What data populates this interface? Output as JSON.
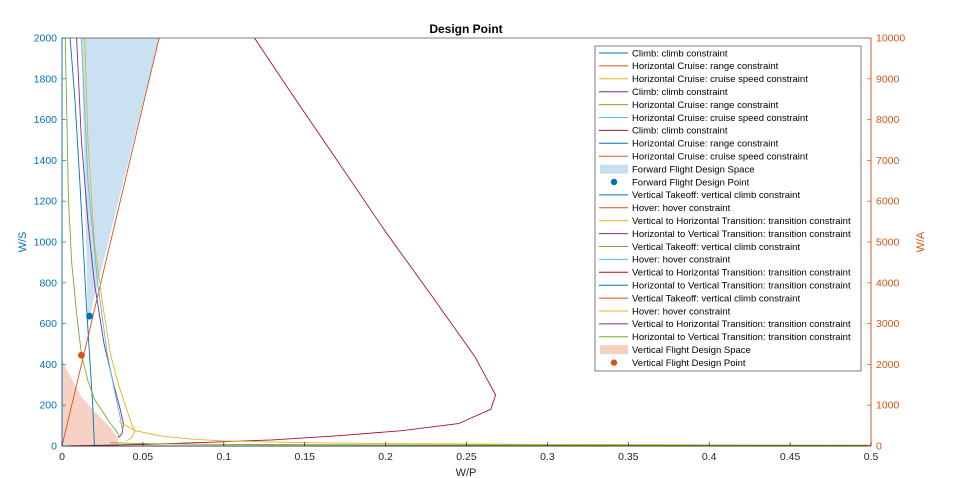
{
  "chart_data": {
    "type": "line",
    "title": "Design Point",
    "xlabel": "W/P",
    "ylabel_left": "W/S",
    "ylabel_right": "W/A",
    "xlim": [
      0,
      0.5
    ],
    "ylim_left": [
      0,
      2000
    ],
    "ylim_right": [
      0,
      10000
    ],
    "x_ticks": [
      "0",
      "0.05",
      "0.1",
      "0.15",
      "0.2",
      "0.25",
      "0.3",
      "0.35",
      "0.4",
      "0.45",
      "0.5"
    ],
    "y_left_ticks": [
      "0",
      "200",
      "400",
      "600",
      "800",
      "1000",
      "1200",
      "1400",
      "1600",
      "1800",
      "2000"
    ],
    "y_right_ticks": [
      "0",
      "1000",
      "2000",
      "3000",
      "4000",
      "5000",
      "6000",
      "7000",
      "8000",
      "9000",
      "10000"
    ],
    "grid": false,
    "legend_position": "top-right",
    "colors": {
      "left_axis": "#0072BD",
      "right_axis": "#D95319",
      "forward_space": "#C6DFF0",
      "vertical_space": "#F4D0C0"
    },
    "legend": [
      {
        "label": "Climb: climb constraint",
        "color": "#0072BD",
        "kind": "line"
      },
      {
        "label": "Horizontal Cruise: range constraint",
        "color": "#D95319",
        "kind": "line"
      },
      {
        "label": "Horizontal Cruise: cruise speed constraint",
        "color": "#EDB120",
        "kind": "line"
      },
      {
        "label": "Climb: climb constraint",
        "color": "#7E2F8E",
        "kind": "line"
      },
      {
        "label": "Horizontal Cruise: range constraint",
        "color": "#77AC30",
        "kind": "line"
      },
      {
        "label": "Horizontal Cruise: cruise speed constraint",
        "color": "#4DBEEE",
        "kind": "line"
      },
      {
        "label": "Climb: climb constraint",
        "color": "#A2142F",
        "kind": "line"
      },
      {
        "label": "Horizontal Cruise: range constraint",
        "color": "#0072BD",
        "kind": "line"
      },
      {
        "label": "Horizontal Cruise: cruise speed constraint",
        "color": "#D95319",
        "kind": "line"
      },
      {
        "label": "Forward Flight Design Space",
        "color": "#C6DFF0",
        "kind": "patch"
      },
      {
        "label": "Forward Flight Design Point",
        "color": "#0072BD",
        "kind": "dot"
      },
      {
        "label": "Vertical Takeoff: vertical climb constraint",
        "color": "#0072BD",
        "kind": "line"
      },
      {
        "label": "Hover: hover constraint",
        "color": "#D95319",
        "kind": "line"
      },
      {
        "label": "Vertical to Horizontal Transition: transition constraint",
        "color": "#EDB120",
        "kind": "line"
      },
      {
        "label": "Horizontal to Vertical Transition: transition constraint",
        "color": "#7E2F8E",
        "kind": "line"
      },
      {
        "label": "Vertical Takeoff: vertical climb constraint",
        "color": "#77AC30",
        "kind": "line"
      },
      {
        "label": "Hover: hover constraint",
        "color": "#4DBEEE",
        "kind": "line"
      },
      {
        "label": "Vertical to Horizontal Transition: transition constraint",
        "color": "#A2142F",
        "kind": "line"
      },
      {
        "label": "Horizontal to Vertical Transition: transition constraint",
        "color": "#0072BD",
        "kind": "line"
      },
      {
        "label": "Vertical Takeoff: vertical climb constraint",
        "color": "#D95319",
        "kind": "line"
      },
      {
        "label": "Hover: hover constraint",
        "color": "#EDB120",
        "kind": "line"
      },
      {
        "label": "Vertical to Horizontal Transition: transition constraint",
        "color": "#7E2F8E",
        "kind": "line"
      },
      {
        "label": "Horizontal to Vertical Transition: transition constraint",
        "color": "#77AC30",
        "kind": "line"
      },
      {
        "label": "Vertical Flight Design Space",
        "color": "#F4D0C0",
        "kind": "patch"
      },
      {
        "label": "Vertical Flight Design Point",
        "color": "#D95319",
        "kind": "dot"
      }
    ],
    "series": [
      {
        "color": "#0072BD",
        "axis": "left",
        "x": [
          0.005,
          0.008,
          0.011,
          0.013,
          0.015,
          0.017,
          0.019,
          0.02
        ],
        "y": [
          2000,
          1700,
          1300,
          1000,
          700,
          450,
          200,
          0
        ]
      },
      {
        "color": "#D95319",
        "axis": "left",
        "x": [
          0,
          0.01,
          0.02,
          0.03,
          0.04,
          0.05,
          0.06
        ],
        "y": [
          0,
          333,
          667,
          1000,
          1333,
          1667,
          2000
        ]
      },
      {
        "color": "#EDB120",
        "axis": "left",
        "x": [
          0.014,
          0.016,
          0.02,
          0.025,
          0.03,
          0.035,
          0.04,
          0.043,
          0.045,
          0.043,
          0.04
        ],
        "y": [
          2000,
          1500,
          1000,
          700,
          450,
          300,
          180,
          110,
          70,
          40,
          25
        ]
      },
      {
        "color": "#7E2F8E",
        "axis": "left",
        "x": [
          0.009,
          0.012,
          0.016,
          0.02,
          0.026,
          0.032,
          0.036,
          0.038,
          0.037,
          0.035
        ],
        "y": [
          2000,
          1500,
          1100,
          800,
          500,
          300,
          180,
          110,
          60,
          40
        ]
      },
      {
        "color": "#77AC30",
        "axis": "left",
        "x": [
          0.002,
          0.003,
          0.004,
          0.006,
          0.009,
          0.012,
          0.016,
          0.02,
          0.025,
          0.029,
          0.033,
          0.035,
          0.035
        ],
        "y": [
          2000,
          1600,
          1200,
          900,
          650,
          450,
          320,
          230,
          170,
          120,
          80,
          55,
          40
        ]
      },
      {
        "color": "#4DBEEE",
        "axis": "left",
        "x": [
          0.012,
          0.016,
          0.022,
          0.028,
          0.033,
          0.036,
          0.037
        ],
        "y": [
          2000,
          1300,
          800,
          450,
          250,
          140,
          90
        ]
      },
      {
        "color": "#A2142F",
        "axis": "left",
        "x": [
          0.119,
          0.14,
          0.17,
          0.2,
          0.23,
          0.255,
          0.268,
          0.265,
          0.245,
          0.21,
          0.17,
          0.13,
          0.09,
          0.05,
          0.02,
          0.005
        ],
        "y": [
          2000,
          1750,
          1400,
          1050,
          720,
          440,
          250,
          180,
          110,
          75,
          50,
          30,
          18,
          8,
          3,
          1
        ]
      },
      {
        "color": "#EDB120",
        "axis": "right",
        "x": [
          0.035,
          0.045,
          0.06,
          0.08,
          0.1,
          0.15,
          0.2,
          0.3,
          0.4,
          0.5
        ],
        "y": [
          600,
          380,
          250,
          170,
          125,
          80,
          60,
          40,
          30,
          22
        ]
      },
      {
        "color": "#77AC30",
        "axis": "right",
        "x": [
          0.03,
          0.05,
          0.1,
          0.2,
          0.3,
          0.4,
          0.5
        ],
        "y": [
          80,
          60,
          40,
          28,
          20,
          15,
          12
        ]
      }
    ],
    "regions": [
      {
        "name": "Forward Flight Design Space",
        "color": "#C6DFF0",
        "x": [
          0.012,
          0.06,
          0.016,
          0.012
        ],
        "y": [
          2000,
          2000,
          600,
          2000
        ]
      },
      {
        "name": "Vertical Flight Design Space",
        "color": "#F4D0C0",
        "x": [
          0,
          0.035,
          0.0345,
          0.03,
          0.02,
          0.012,
          0.006,
          0
        ],
        "y": [
          0,
          0,
          40,
          90,
          170,
          240,
          330,
          420
        ]
      }
    ],
    "points": [
      {
        "name": "Forward Flight Design Point",
        "color": "#0072BD",
        "x": 0.017,
        "y": 637
      },
      {
        "name": "Vertical Flight Design Point",
        "color": "#D95319",
        "x": 0.012,
        "y": 445
      }
    ]
  }
}
